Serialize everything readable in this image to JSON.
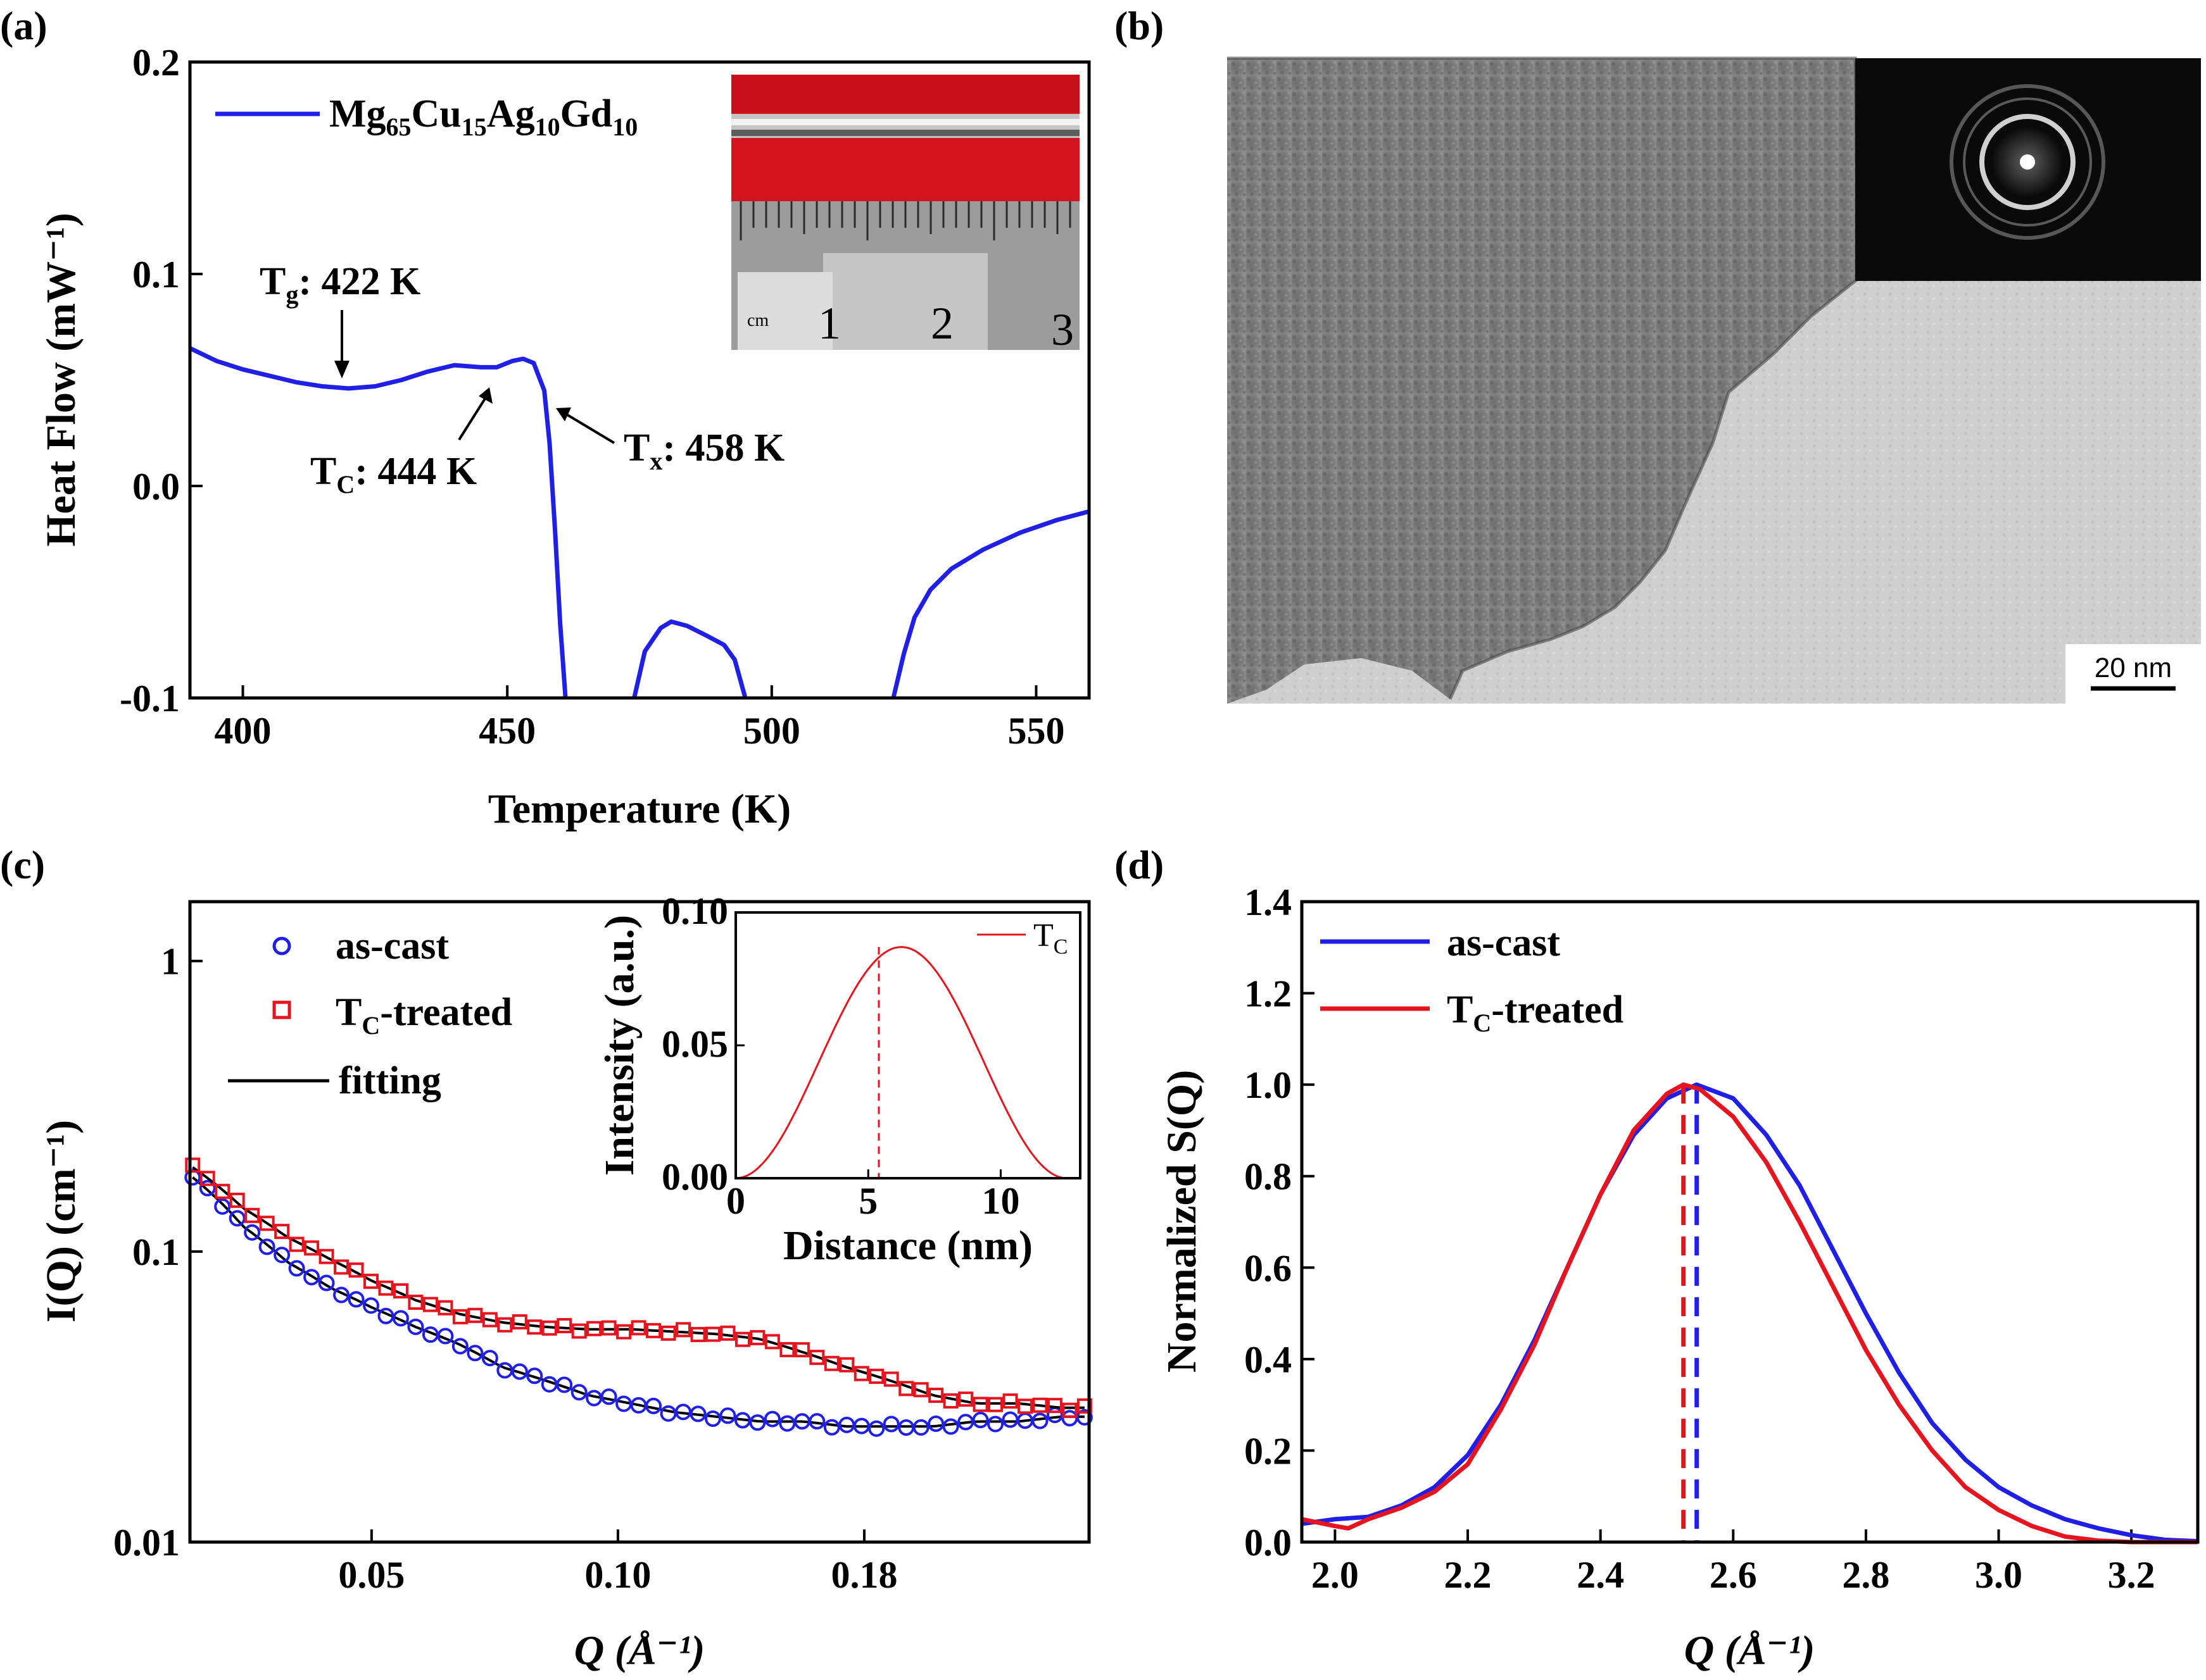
{
  "panels": {
    "a": {
      "label": "(a)"
    },
    "b": {
      "label": "(b)"
    },
    "c": {
      "label": "(c)"
    },
    "d": {
      "label": "(d)"
    }
  },
  "colors": {
    "blue": "#1f1fe6",
    "red": "#e6141e",
    "black": "#000000"
  },
  "chart_data": [
    {
      "id": "a",
      "type": "line",
      "title": "",
      "xlabel": "Temperature (K)",
      "ylabel": "Heat Flow (mW⁻¹)",
      "xlim": [
        390,
        560
      ],
      "ylim": [
        -0.1,
        0.2
      ],
      "xticks": [
        "400",
        "450",
        "500",
        "550"
      ],
      "xtick_values": [
        400,
        450,
        500,
        550
      ],
      "yticks": [
        "-0.1",
        "0.0",
        "0.1",
        "0.2"
      ],
      "ytick_values": [
        -0.1,
        0.0,
        0.1,
        0.2
      ],
      "legend": {
        "base": "Mg",
        "subs": [
          "65",
          "15",
          "10",
          "10"
        ],
        "elements": [
          "Mg",
          "Cu",
          "Ag",
          "Gd"
        ],
        "full": "Mg65Cu15Ag10Gd10",
        "color": "#1f1fe6"
      },
      "annotations": [
        {
          "symbol": "T",
          "sub": "g",
          "text": ": 422 K",
          "x": 419,
          "y": 0.046
        },
        {
          "symbol": "T",
          "sub": "C",
          "text": ": 444 K",
          "x": 449,
          "y": 0.046
        },
        {
          "symbol": "T",
          "sub": "x",
          "text": ": 458 K",
          "x": 456,
          "y": 0.039
        }
      ],
      "inset": {
        "type": "photo",
        "ruler_labels": [
          "cm",
          "1",
          "2",
          "3"
        ]
      },
      "series": [
        {
          "name": "Mg65Cu15Ag10Gd10",
          "color": "#1f1fe6",
          "segments": [
            [
              [
                390,
                0.065
              ],
              [
                395,
                0.059
              ],
              [
                400,
                0.055
              ],
              [
                405,
                0.052
              ],
              [
                410,
                0.049
              ],
              [
                415,
                0.047
              ],
              [
                420,
                0.046
              ],
              [
                425,
                0.047
              ],
              [
                430,
                0.05
              ],
              [
                435,
                0.054
              ],
              [
                440,
                0.057
              ],
              [
                445,
                0.056
              ],
              [
                448,
                0.056
              ],
              [
                451,
                0.059
              ],
              [
                453,
                0.06
              ],
              [
                455,
                0.058
              ],
              [
                457,
                0.045
              ],
              [
                458,
                0.02
              ],
              [
                459,
                -0.02
              ],
              [
                460,
                -0.065
              ],
              [
                461,
                -0.1
              ]
            ],
            [
              [
                474,
                -0.1
              ],
              [
                476,
                -0.078
              ],
              [
                479,
                -0.067
              ],
              [
                481,
                -0.064
              ],
              [
                484,
                -0.066
              ],
              [
                488,
                -0.071
              ],
              [
                491,
                -0.075
              ],
              [
                493,
                -0.082
              ],
              [
                495,
                -0.1
              ]
            ],
            [
              [
                523,
                -0.1
              ],
              [
                525,
                -0.079
              ],
              [
                527,
                -0.062
              ],
              [
                530,
                -0.049
              ],
              [
                534,
                -0.039
              ],
              [
                540,
                -0.03
              ],
              [
                547,
                -0.022
              ],
              [
                554,
                -0.016
              ],
              [
                560,
                -0.012
              ]
            ]
          ]
        }
      ]
    },
    {
      "id": "c",
      "type": "line",
      "title": "",
      "xlabel": "Q (Å⁻¹)",
      "ylabel": "I(Q) (cm⁻¹)",
      "yscale": "log",
      "xlim": [
        0,
        1
      ],
      "ylim": [
        0.01,
        1.6
      ],
      "xticks": [
        "0.05",
        "0.10",
        "0.18"
      ],
      "xtick_values": [
        0.202,
        0.476,
        0.75
      ],
      "yticks": [
        "0.01",
        "0.1",
        "1"
      ],
      "ytick_values": [
        0.01,
        0.1,
        1
      ],
      "legend": [
        {
          "name": "as-cast",
          "marker": "circle",
          "color": "#1f1fe6"
        },
        {
          "name": "-treated",
          "prefix": "T",
          "sub": "C",
          "marker": "square",
          "color": "#e6141e"
        },
        {
          "name": "fitting",
          "marker": "line",
          "color": "#000000"
        }
      ],
      "series": [
        {
          "name": "as-cast",
          "color": "#1f1fe6",
          "x": [
            0.003,
            0.059,
            0.108,
            0.156,
            0.203,
            0.251,
            0.299,
            0.347,
            0.395,
            0.443,
            0.49,
            0.538,
            0.586,
            0.634,
            0.682,
            0.73,
            0.778,
            0.826,
            0.874,
            0.921,
            0.969,
            0.995
          ],
          "y": [
            0.18,
            0.122,
            0.092,
            0.075,
            0.064,
            0.055,
            0.048,
            0.04,
            0.036,
            0.032,
            0.03,
            0.028,
            0.027,
            0.026,
            0.026,
            0.025,
            0.025,
            0.025,
            0.026,
            0.026,
            0.027,
            0.027
          ]
        },
        {
          "name": "TC-treated",
          "color": "#e6141e",
          "x": [
            0.003,
            0.059,
            0.108,
            0.156,
            0.203,
            0.251,
            0.299,
            0.347,
            0.395,
            0.443,
            0.49,
            0.538,
            0.586,
            0.634,
            0.682,
            0.73,
            0.778,
            0.826,
            0.874,
            0.921,
            0.969,
            0.995
          ],
          "y": [
            0.195,
            0.141,
            0.112,
            0.094,
            0.079,
            0.068,
            0.061,
            0.057,
            0.055,
            0.054,
            0.054,
            0.053,
            0.052,
            0.05,
            0.045,
            0.04,
            0.036,
            0.032,
            0.03,
            0.03,
            0.029,
            0.029
          ]
        }
      ],
      "inset": {
        "type": "line",
        "xlabel": "Distance (nm)",
        "ylabel": "Intensity (a.u.)",
        "xlim": [
          0,
          13
        ],
        "ylim": [
          0,
          0.1
        ],
        "xticks": [
          "0",
          "5",
          "10"
        ],
        "xtick_values": [
          0,
          5,
          10
        ],
        "yticks": [
          "0.00",
          "0.05",
          "0.10"
        ],
        "ytick_values": [
          0,
          0.05,
          0.1
        ],
        "legend_prefix": "T",
        "legend_sub": "C",
        "peak_x": 5.4,
        "peak_y": 0.087,
        "x_max": 12.5,
        "color": "#e6141e"
      }
    },
    {
      "id": "d",
      "type": "line",
      "title": "",
      "xlabel": "Q (Å⁻¹)",
      "ylabel": "Normalized S(Q)",
      "xlim": [
        1.95,
        3.3
      ],
      "ylim": [
        0,
        1.4
      ],
      "xticks": [
        "2.0",
        "2.2",
        "2.4",
        "2.6",
        "2.8",
        "3.0",
        "3.2"
      ],
      "xtick_values": [
        2.0,
        2.2,
        2.4,
        2.6,
        2.8,
        3.0,
        3.2
      ],
      "yticks": [
        "0.0",
        "0.2",
        "0.4",
        "0.6",
        "0.8",
        "1.0",
        "1.2",
        "1.4"
      ],
      "ytick_values": [
        0,
        0.2,
        0.4,
        0.6,
        0.8,
        1.0,
        1.2,
        1.4
      ],
      "legend": [
        {
          "name": "as-cast",
          "color": "#1f1fe6"
        },
        {
          "name": "-treated",
          "prefix": "T",
          "sub": "C",
          "color": "#e6141e"
        }
      ],
      "series": [
        {
          "name": "as-cast",
          "color": "#1f1fe6",
          "peak": 2.545,
          "x": [
            1.95,
            2.0,
            2.05,
            2.1,
            2.15,
            2.2,
            2.25,
            2.3,
            2.35,
            2.4,
            2.45,
            2.5,
            2.545,
            2.6,
            2.65,
            2.7,
            2.75,
            2.8,
            2.85,
            2.9,
            2.95,
            3.0,
            3.05,
            3.1,
            3.15,
            3.2,
            3.25,
            3.3
          ],
          "y": [
            0.04,
            0.05,
            0.055,
            0.08,
            0.12,
            0.19,
            0.3,
            0.44,
            0.6,
            0.76,
            0.89,
            0.97,
            1.0,
            0.97,
            0.89,
            0.78,
            0.64,
            0.5,
            0.37,
            0.26,
            0.18,
            0.12,
            0.08,
            0.05,
            0.03,
            0.015,
            0.005,
            0.002
          ]
        },
        {
          "name": "TC-treated",
          "color": "#e6141e",
          "peak": 2.525,
          "x": [
            1.95,
            2.0,
            2.02,
            2.05,
            2.1,
            2.15,
            2.2,
            2.25,
            2.3,
            2.35,
            2.4,
            2.45,
            2.5,
            2.525,
            2.55,
            2.6,
            2.65,
            2.7,
            2.75,
            2.8,
            2.85,
            2.9,
            2.95,
            3.0,
            3.05,
            3.1,
            3.15,
            3.2,
            3.3
          ],
          "y": [
            0.05,
            0.035,
            0.03,
            0.05,
            0.075,
            0.11,
            0.17,
            0.29,
            0.43,
            0.6,
            0.76,
            0.9,
            0.98,
            1.0,
            0.99,
            0.93,
            0.83,
            0.7,
            0.56,
            0.42,
            0.3,
            0.2,
            0.12,
            0.07,
            0.035,
            0.012,
            0.003,
            0.0,
            0.0
          ]
        }
      ]
    }
  ],
  "tem": {
    "scale_bar_label": "20 nm"
  }
}
